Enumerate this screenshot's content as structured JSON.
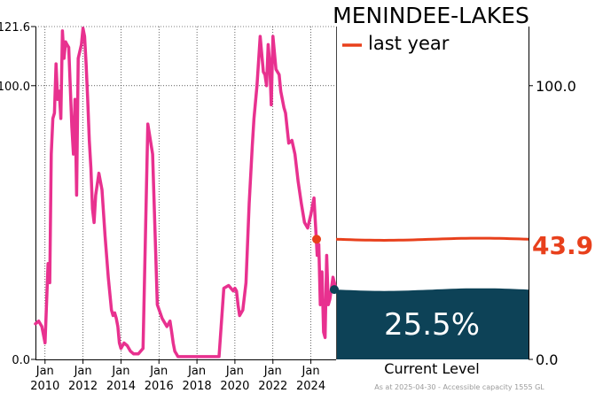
{
  "chart_data": {
    "type": "line",
    "title": "MENINDEE-LAKES",
    "legend": {
      "label": "last year",
      "color": "#e8401c",
      "placement": "top-right"
    },
    "x_range": [
      "2009-07-01",
      "2025-04-30"
    ],
    "ylim": [
      0,
      121.6
    ],
    "left_y_ticks": [
      0.0,
      100.0,
      121.6
    ],
    "left_y_tick_labels": [
      "0.0",
      "100.0",
      "121.6"
    ],
    "right_y_tick_labels": [
      "0.0",
      "100.0"
    ],
    "x_tick_labels": [
      [
        "Jan",
        "2010"
      ],
      [
        "Jan",
        "2012"
      ],
      [
        "Jan",
        "2014"
      ],
      [
        "Jan",
        "2016"
      ],
      [
        "Jan",
        "2018"
      ],
      [
        "Jan",
        "2020"
      ],
      [
        "Jan",
        "2022"
      ],
      [
        "Jan",
        "2024"
      ]
    ],
    "x_tick_years": [
      2010,
      2012,
      2014,
      2016,
      2018,
      2020,
      2022,
      2024
    ],
    "grid": true,
    "series": [
      {
        "color": "#e8318f",
        "x": [
          "2009-07-01",
          "2009-09-01",
          "2009-11-01",
          "2010-01-01",
          "2010-03-01",
          "2010-04-01",
          "2010-05-01",
          "2010-06-01",
          "2010-07-01",
          "2010-08-01",
          "2010-09-01",
          "2010-10-01",
          "2010-11-01",
          "2010-12-01",
          "2011-01-01",
          "2011-02-01",
          "2011-03-01",
          "2011-04-01",
          "2011-05-01",
          "2011-06-01",
          "2011-07-01",
          "2011-08-01",
          "2011-09-01",
          "2011-10-01",
          "2011-12-01",
          "2012-01-01",
          "2012-02-01",
          "2012-03-01",
          "2012-04-01",
          "2012-05-01",
          "2012-06-01",
          "2012-07-01",
          "2012-08-01",
          "2012-09-01",
          "2012-11-01",
          "2013-01-01",
          "2013-03-01",
          "2013-05-01",
          "2013-07-01",
          "2013-08-01",
          "2013-09-01",
          "2013-10-01",
          "2013-11-01",
          "2013-12-01",
          "2014-01-01",
          "2014-03-01",
          "2014-05-01",
          "2014-07-01",
          "2014-09-01",
          "2014-12-01",
          "2015-03-01",
          "2015-06-01",
          "2015-09-01",
          "2015-12-01",
          "2016-03-01",
          "2016-06-01",
          "2016-08-01",
          "2016-09-01",
          "2016-10-01",
          "2016-11-01",
          "2016-12-01",
          "2017-01-01",
          "2017-03-01",
          "2017-06-01",
          "2017-09-01",
          "2017-12-01",
          "2018-03-01",
          "2018-06-01",
          "2018-09-01",
          "2018-12-01",
          "2019-03-01",
          "2019-06-01",
          "2019-09-01",
          "2019-12-01",
          "2020-01-01",
          "2020-02-01",
          "2020-03-01",
          "2020-04-01",
          "2020-06-01",
          "2020-08-01",
          "2020-10-01",
          "2020-12-01",
          "2021-01-01",
          "2021-03-01",
          "2021-05-01",
          "2021-07-01",
          "2021-08-01",
          "2021-09-01",
          "2021-10-01",
          "2021-11-01",
          "2021-12-01",
          "2022-01-01",
          "2022-03-01",
          "2022-05-01",
          "2022-06-01",
          "2022-08-01",
          "2022-09-01",
          "2022-11-01",
          "2023-01-01",
          "2023-03-01",
          "2023-05-01",
          "2023-07-01",
          "2023-09-01",
          "2023-11-01",
          "2024-01-01",
          "2024-03-01",
          "2024-05-01",
          "2024-06-01",
          "2024-07-01",
          "2024-08-01",
          "2024-09-01",
          "2024-10-01",
          "2024-11-01",
          "2024-12-01",
          "2025-01-01",
          "2025-03-01",
          "2025-04-30"
        ],
        "y": [
          13,
          14,
          12,
          6,
          35,
          28,
          75,
          88,
          90,
          108,
          95,
          98,
          88,
          120,
          110,
          116,
          115,
          114,
          100,
          85,
          75,
          95,
          60,
          110,
          115,
          121,
          118,
          108,
          95,
          80,
          70,
          55,
          50,
          60,
          68,
          62,
          45,
          30,
          18,
          16,
          17,
          15,
          12,
          6,
          4,
          6,
          5,
          3,
          2,
          2,
          4,
          86,
          75,
          20,
          15,
          12,
          14,
          10,
          6,
          3,
          2,
          1,
          1,
          1,
          1,
          1,
          1,
          1,
          1,
          1,
          1,
          26,
          27,
          25,
          26,
          25,
          20,
          16,
          18,
          28,
          57,
          78,
          88,
          100,
          118,
          105,
          104,
          100,
          115,
          108,
          93,
          118,
          106,
          104,
          98,
          92,
          90,
          79,
          80,
          75,
          65,
          57,
          50,
          48,
          53,
          59,
          38,
          42,
          20,
          32,
          10,
          8,
          38,
          20,
          22,
          30,
          25.5
        ]
      }
    ],
    "last_year": {
      "value": 43.9,
      "value_label": "43.9"
    },
    "current": {
      "value": 25.5,
      "percent_label": "25.5%",
      "label": "Current Level",
      "fill_color": "#0d4257"
    },
    "footnote": "As at 2025-04-30 - Accessible capacity 1555 GL"
  }
}
